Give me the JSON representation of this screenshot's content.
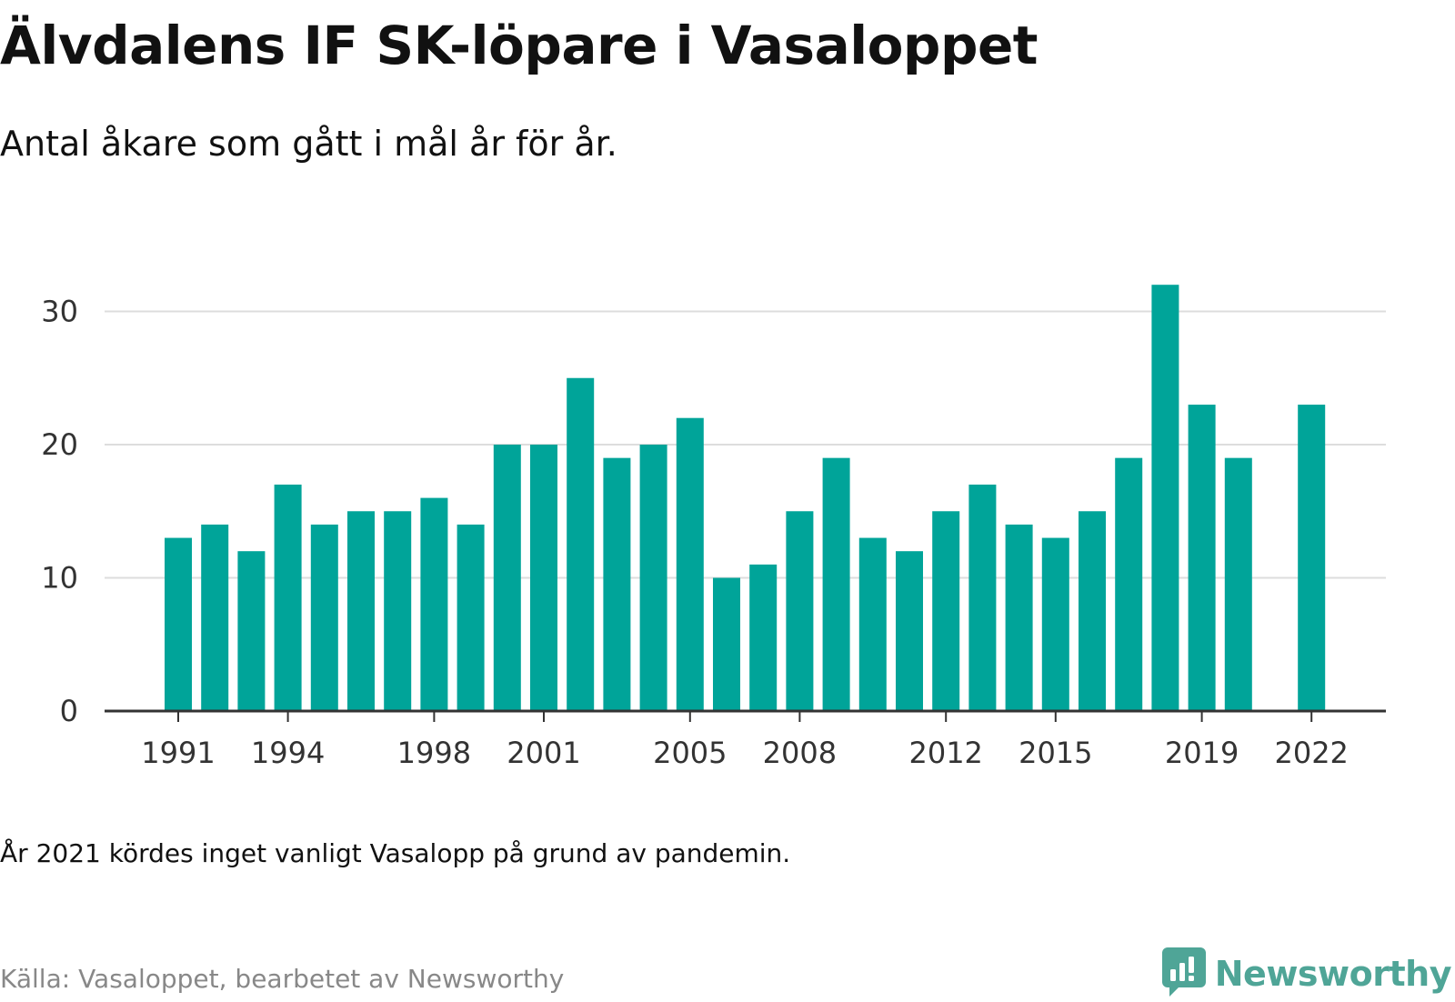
{
  "header": {
    "title": "Älvdalens IF SK-löpare i Vasaloppet",
    "subtitle": "Antal åkare som gått i mål år för år."
  },
  "footer": {
    "note": "År 2021 kördes inget vanligt Vasalopp på grund av pandemin.",
    "source": "Källa: Vasaloppet, bearbetet av Newsworthy",
    "brand": "Newsworthy"
  },
  "colors": {
    "bar": "#00a499",
    "grid": "#dddddd",
    "axis": "#333333",
    "brand": "#4fa597"
  },
  "chart_data": {
    "type": "bar",
    "title": "Älvdalens IF SK-löpare i Vasaloppet",
    "subtitle": "Antal åkare som gått i mål år för år.",
    "xlabel": "",
    "ylabel": "",
    "ylim": [
      0,
      33
    ],
    "yticks": [
      0,
      10,
      20,
      30
    ],
    "xtick_labels": [
      "1991",
      "1994",
      "1998",
      "2001",
      "2005",
      "2008",
      "2012",
      "2015",
      "2019",
      "2022"
    ],
    "grid": true,
    "legend": "none",
    "categories": [
      "1991",
      "1992",
      "1993",
      "1994",
      "1995",
      "1996",
      "1997",
      "1998",
      "1999",
      "2000",
      "2001",
      "2002",
      "2003",
      "2004",
      "2005",
      "2006",
      "2007",
      "2008",
      "2009",
      "2010",
      "2011",
      "2012",
      "2013",
      "2014",
      "2015",
      "2016",
      "2017",
      "2018",
      "2019",
      "2020",
      "2021",
      "2022"
    ],
    "values": [
      13,
      14,
      12,
      17,
      14,
      15,
      15,
      16,
      14,
      20,
      20,
      25,
      19,
      20,
      22,
      10,
      11,
      15,
      19,
      13,
      12,
      15,
      17,
      14,
      13,
      15,
      19,
      32,
      23,
      19,
      null,
      23
    ]
  }
}
